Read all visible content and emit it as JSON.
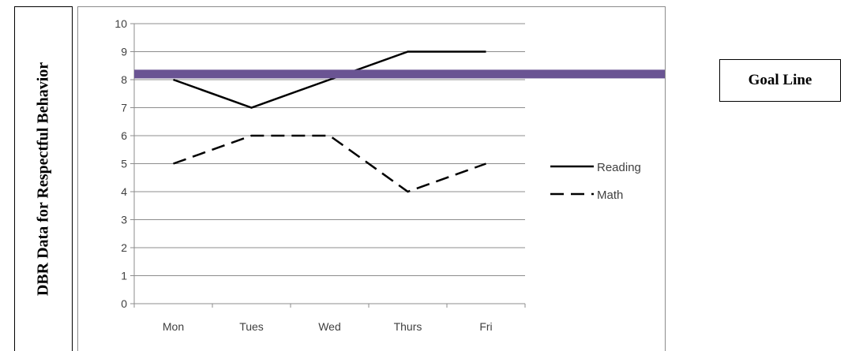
{
  "y_axis_title": "DBR Data for Respectful Behavior",
  "goal_box_label": "Goal Line",
  "chart_data": {
    "type": "line",
    "categories": [
      "Mon",
      "Tues",
      "Wed",
      "Thurs",
      "Fri"
    ],
    "series": [
      {
        "name": "Reading",
        "values": [
          8,
          7,
          8,
          9,
          9
        ],
        "style": "solid",
        "color": "#000000"
      },
      {
        "name": "Math",
        "values": [
          5,
          6,
          6,
          4,
          5
        ],
        "style": "dashed",
        "color": "#000000"
      }
    ],
    "goal_line": {
      "value": 8.2,
      "color": "#6a5493"
    },
    "ylim": [
      0,
      10
    ],
    "yticks": [
      0,
      1,
      2,
      3,
      4,
      5,
      6,
      7,
      8,
      9,
      10
    ],
    "grid": true,
    "legend_position": "right"
  }
}
